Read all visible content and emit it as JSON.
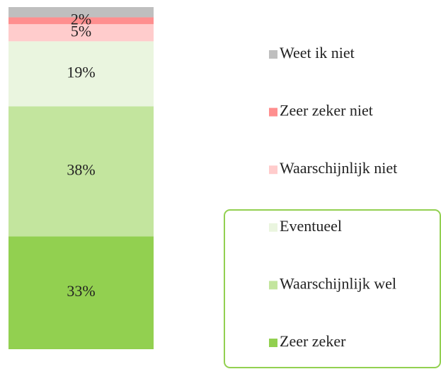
{
  "chart_data": {
    "type": "bar",
    "stacked": true,
    "ylim": [
      0,
      100
    ],
    "series": [
      {
        "name": "Zeer zeker",
        "color": "#92d050",
        "values": [
          33
        ],
        "value_labels": [
          "33%"
        ]
      },
      {
        "name": "Waarschijnlijk wel",
        "color": "#c3e59e",
        "values": [
          38
        ],
        "value_labels": [
          "38%"
        ]
      },
      {
        "name": "Eventueel",
        "color": "#eaf5df",
        "values": [
          19
        ],
        "value_labels": [
          "19%"
        ]
      },
      {
        "name": "Waarschijnlijk niet",
        "color": "#ffcccc",
        "values": [
          5
        ],
        "value_labels": [
          "5%"
        ]
      },
      {
        "name": "Zeer zeker niet",
        "color": "#ff8f8f",
        "values": [
          2
        ],
        "value_labels": [
          "2%"
        ]
      },
      {
        "name": "Weet ik niet",
        "color": "#bfbfbf",
        "values": [
          3
        ],
        "value_labels": [
          null
        ]
      }
    ]
  }
}
